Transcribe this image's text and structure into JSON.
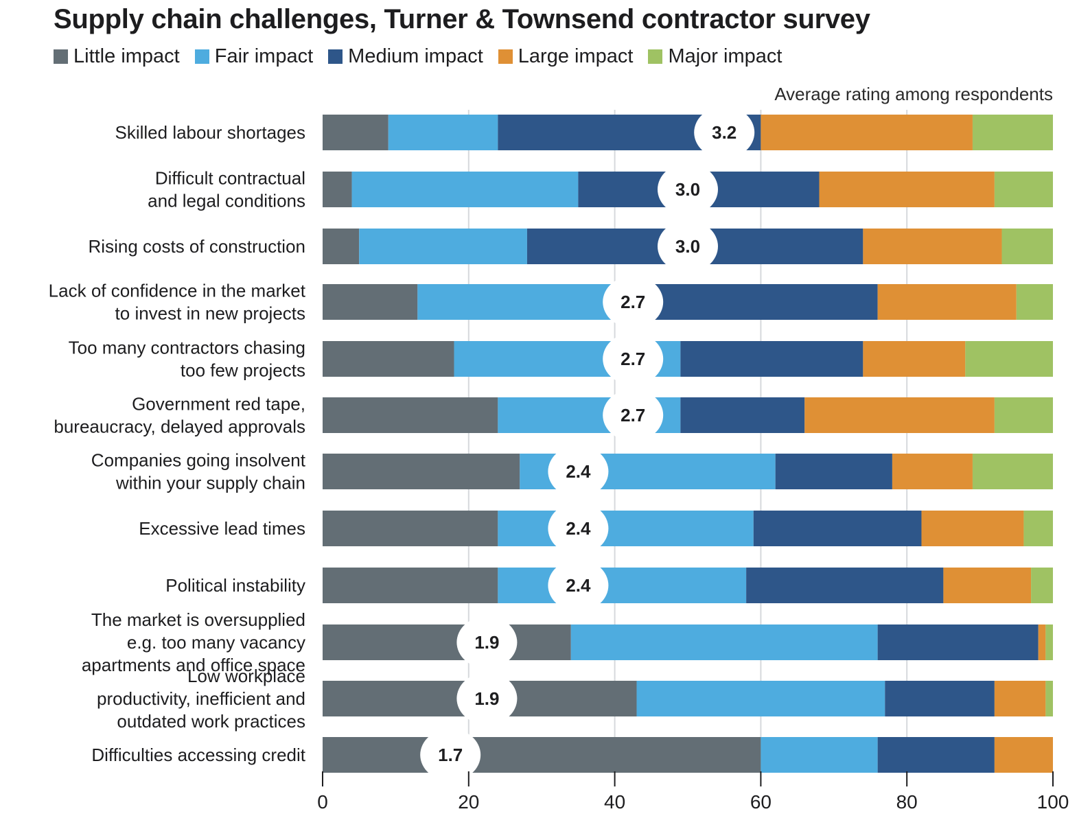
{
  "chart_data": {
    "type": "bar",
    "orientation": "horizontal-stacked-percent",
    "title": "Supply chain challenges, Turner & Townsend contractor survey",
    "subtitle": "Average rating among respondents",
    "xlabel": "",
    "ylabel": "",
    "xlim": [
      0,
      100
    ],
    "xticks": [
      0,
      20,
      40,
      60,
      80,
      100
    ],
    "grid": true,
    "legend_position": "top-left",
    "categories": [
      [
        "Skilled labour shortages"
      ],
      [
        "Difficult contractual",
        "and legal conditions"
      ],
      [
        "Rising costs of construction"
      ],
      [
        "Lack of confidence in the market",
        "to invest in new projects"
      ],
      [
        "Too many contractors chasing",
        "too few projects"
      ],
      [
        "Government red tape,",
        "bureaucracy, delayed approvals"
      ],
      [
        "Companies going insolvent",
        "within your supply chain"
      ],
      [
        "Excessive lead times"
      ],
      [
        "Political instability"
      ],
      [
        "The market is oversupplied",
        "e.g. too many vacancy",
        "apartments and office space"
      ],
      [
        "Low workplace",
        "productivity, inefficient and",
        "outdated work practices"
      ],
      [
        "Difficulties accessing credit"
      ]
    ],
    "series": [
      {
        "name": "Little impact",
        "color": "#636e75",
        "values": [
          9,
          4,
          5,
          13,
          18,
          24,
          27,
          24,
          24,
          34,
          43,
          60
        ]
      },
      {
        "name": "Fair impact",
        "color": "#4eacdf",
        "values": [
          15,
          31,
          23,
          31,
          31,
          25,
          35,
          35,
          34,
          42,
          34,
          16
        ]
      },
      {
        "name": "Medium impact",
        "color": "#2e5689",
        "values": [
          36,
          33,
          46,
          32,
          25,
          17,
          16,
          23,
          27,
          22,
          15,
          16
        ]
      },
      {
        "name": "Large impact",
        "color": "#df9035",
        "values": [
          29,
          24,
          19,
          19,
          14,
          26,
          11,
          14,
          12,
          1,
          7,
          8
        ]
      },
      {
        "name": "Major impact",
        "color": "#9fc263",
        "values": [
          11,
          8,
          7,
          5,
          12,
          8,
          11,
          4,
          3,
          1,
          1,
          0
        ]
      }
    ],
    "average_ratings": [
      "3.2",
      "3.0",
      "3.0",
      "2.7",
      "2.7",
      "2.7",
      "2.4",
      "2.4",
      "2.4",
      "1.9",
      "1.9",
      "1.7"
    ]
  }
}
